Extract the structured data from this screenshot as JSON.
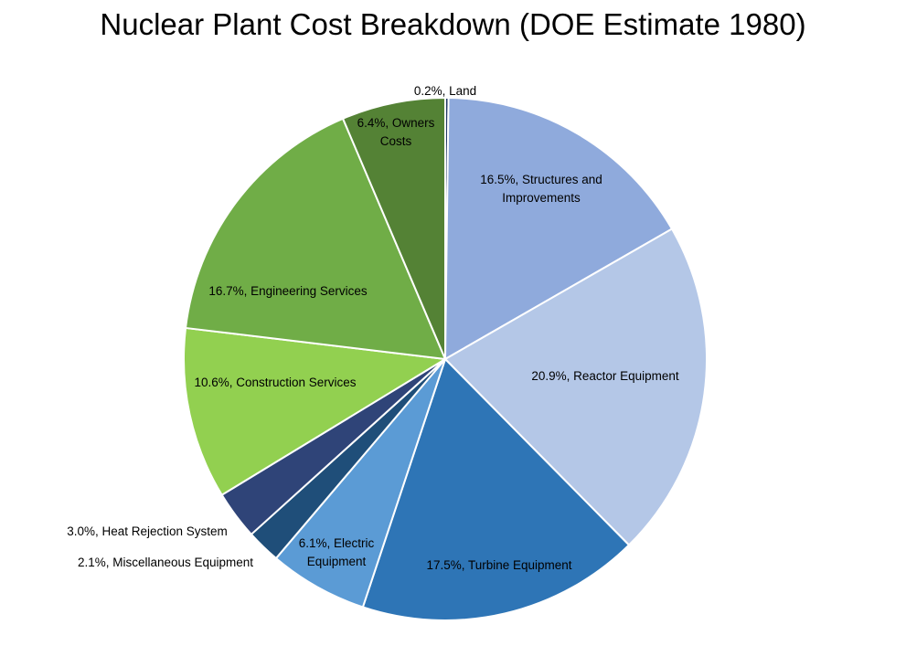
{
  "chart_data": {
    "type": "pie",
    "title": "Nuclear Plant Cost Breakdown (DOE Estimate 1980)",
    "legend": "none",
    "slices": [
      {
        "name": "Land",
        "value": 0.2,
        "color": "#203864",
        "label": [
          "0.2%, Land"
        ]
      },
      {
        "name": "Structures and Improvements",
        "value": 16.5,
        "color": "#8FAADC",
        "label": [
          "16.5%, Structures and",
          "Improvements"
        ]
      },
      {
        "name": "Reactor Equipment",
        "value": 20.9,
        "color": "#B4C7E7",
        "label": [
          "20.9%, Reactor Equipment"
        ]
      },
      {
        "name": "Turbine Equipment",
        "value": 17.5,
        "color": "#2E75B6",
        "label": [
          "17.5%, Turbine Equipment"
        ]
      },
      {
        "name": "Electric Equipment",
        "value": 6.1,
        "color": "#5B9BD5",
        "label": [
          "6.1%, Electric",
          "Equipment"
        ]
      },
      {
        "name": "Miscellaneous Equipment",
        "value": 2.1,
        "color": "#1F4E79",
        "label": [
          "2.1%, Miscellaneous Equipment"
        ]
      },
      {
        "name": "Heat Rejection System",
        "value": 3.0,
        "color": "#2F4478",
        "label": [
          "3.0%, Heat Rejection System"
        ]
      },
      {
        "name": "Construction Services",
        "value": 10.6,
        "color": "#92D050",
        "label": [
          "10.6%, Construction Services"
        ]
      },
      {
        "name": "Engineering Services",
        "value": 16.7,
        "color": "#70AD47",
        "label": [
          "16.7%, Engineering Services"
        ]
      },
      {
        "name": "Owners Costs",
        "value": 6.4,
        "color": "#548235",
        "label": [
          "6.4%, Owners",
          "Costs"
        ]
      }
    ]
  }
}
